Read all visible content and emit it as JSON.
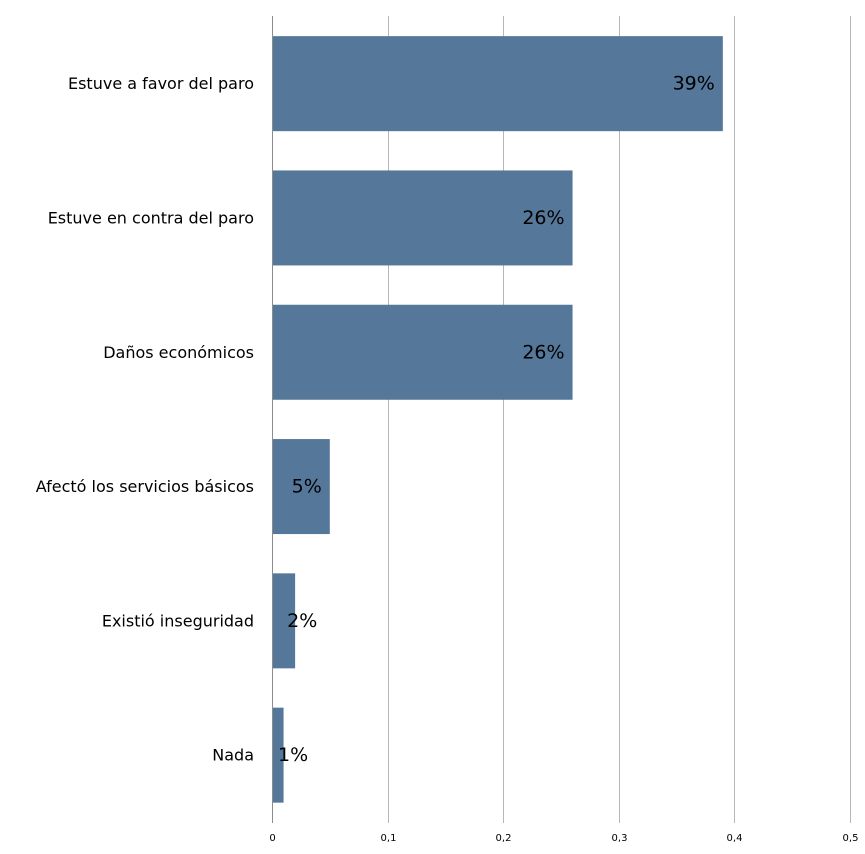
{
  "chart_data": {
    "type": "bar",
    "orientation": "horizontal",
    "categories": [
      "Estuve a favor del paro",
      "Estuve en contra del paro",
      "Daños económicos",
      "Afectó los servicios básicos",
      "Existió inseguridad",
      "Nada"
    ],
    "values": [
      0.39,
      0.26,
      0.26,
      0.05,
      0.02,
      0.01
    ],
    "data_labels": [
      "39%",
      "26%",
      "26%",
      "5%",
      "2%",
      "1%"
    ],
    "x_ticks": [
      "0",
      "0,1",
      "0,2",
      "0,3",
      "0,4",
      "0,5"
    ],
    "xlim": [
      0,
      0.5
    ],
    "grid": true,
    "legend": "none",
    "bar_color": "#557799"
  }
}
